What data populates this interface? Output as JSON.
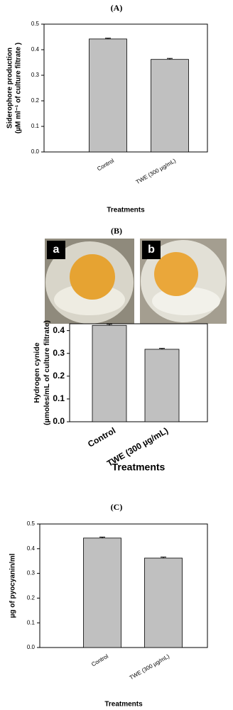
{
  "panel_labels": [
    "(A)",
    "(B)",
    "(C)"
  ],
  "photos": [
    {
      "label": "a"
    },
    {
      "label": "b"
    }
  ],
  "chart_data": [
    {
      "type": "bar",
      "categories": [
        "Control",
        "TWE (300 µg/mL)"
      ],
      "values": [
        0.442,
        0.362
      ],
      "errors": [
        0.003,
        0.004
      ],
      "color": "#c0c0c0",
      "ylim": [
        0,
        0.5
      ],
      "yticks": [
        {
          "value": 0,
          "label": "0.0"
        },
        0.1,
        0.2,
        0.3,
        0.4,
        0.5
      ],
      "ylabel": [
        "Siderophore production",
        "(µM ml⁻¹ of culture filtrate )"
      ],
      "xlabel": "Treatments"
    },
    {
      "type": "bar",
      "categories": [
        "Control",
        "TWE (300 µg/mL)"
      ],
      "values": [
        0.423,
        0.318
      ],
      "errors": [
        0.005,
        0.004
      ],
      "color": "#c0c0c0",
      "ylim": [
        0,
        0.43
      ],
      "yticks": [
        {
          "value": 0,
          "label": "0.0"
        },
        0.1,
        0.2,
        0.3,
        0.4
      ],
      "ylabel": [
        "Hydrogen cynide",
        "(µmoles/mL of culture filtrate)"
      ],
      "xlabel": "Treatments"
    },
    {
      "type": "bar",
      "categories": [
        "Control",
        "TWE (300 µg/mL)"
      ],
      "values": [
        0.443,
        0.362
      ],
      "errors": [
        0.004,
        0.004
      ],
      "color": "#c0c0c0",
      "ylim": [
        0,
        0.5
      ],
      "yticks": [
        {
          "value": 0,
          "label": "0.0"
        },
        0.1,
        0.2,
        0.3,
        0.4,
        0.5
      ],
      "ylabel": [
        "µg of pyocyanin/ml"
      ],
      "xlabel": "Treatments"
    }
  ]
}
